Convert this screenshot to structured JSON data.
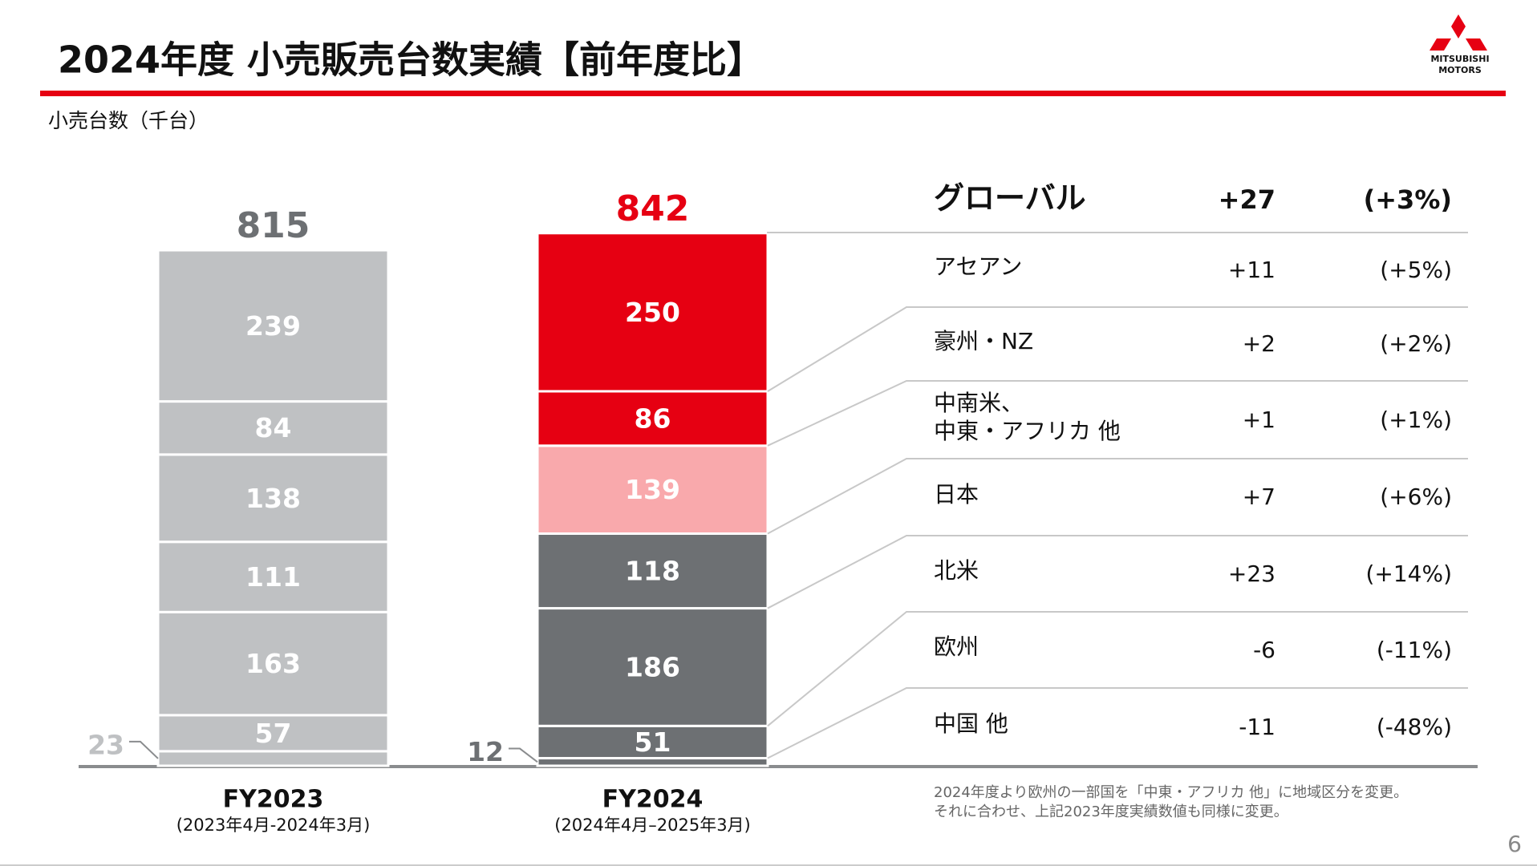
{
  "header": {
    "title": "2024年度 小売販売台数実績【前年度比】",
    "logo": [
      "MITSUBISHI",
      "MOTORS"
    ],
    "page_number": "6"
  },
  "chart_data": {
    "type": "stacked-bar",
    "subtitle": "小売台数（千台）",
    "categories": [
      "FY2023",
      "FY2024"
    ],
    "category_subtitles": [
      "(2023年4月-2024年3月)",
      "(2024年4月–2025年3月)"
    ],
    "ylim": [
      0,
      900
    ],
    "totals": [
      815,
      842
    ],
    "total_colors": [
      "#6d7073",
      "#e60012"
    ],
    "series": [
      {
        "name": "中国 他",
        "values": [
          23,
          12
        ],
        "colors": [
          "#bfc1c3",
          "#6d7073"
        ],
        "change": "-11",
        "change_pct": "(-48%)"
      },
      {
        "name": "欧州",
        "values": [
          57,
          51
        ],
        "colors": [
          "#bfc1c3",
          "#6d7073"
        ],
        "change": "-6",
        "change_pct": "(-11%)"
      },
      {
        "name": "北米",
        "values": [
          163,
          186
        ],
        "colors": [
          "#bfc1c3",
          "#6d7073"
        ],
        "change": "+23",
        "change_pct": "(+14%)"
      },
      {
        "name": "日本",
        "values": [
          111,
          118
        ],
        "colors": [
          "#bfc1c3",
          "#6d7073"
        ],
        "change": "+7",
        "change_pct": "(+6%)"
      },
      {
        "name": "中南米、\n中東・アフリカ 他",
        "values": [
          138,
          139
        ],
        "colors": [
          "#bfc1c3",
          "#f9a9ac"
        ],
        "change": "+1",
        "change_pct": "(+1%)"
      },
      {
        "name": "豪州・NZ",
        "values": [
          84,
          86
        ],
        "colors": [
          "#bfc1c3",
          "#e60012"
        ],
        "change": "+2",
        "change_pct": "(+2%)"
      },
      {
        "name": "アセアン",
        "values": [
          239,
          250
        ],
        "colors": [
          "#bfc1c3",
          "#e60012"
        ],
        "change": "+11",
        "change_pct": "(+5%)"
      }
    ],
    "global": {
      "label": "グローバル",
      "change": "+27",
      "change_pct": "(+3%)"
    },
    "note": [
      "2024年度より欧州の一部国を「中東・アフリカ 他」に地域区分を変更。",
      "それに合わせ、上記2023年度実績数値も同様に変更。"
    ]
  }
}
